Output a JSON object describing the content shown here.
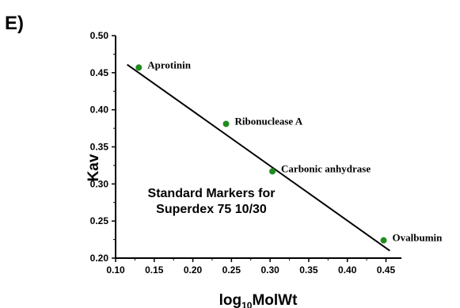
{
  "panel_label": "E)",
  "chart_data": {
    "type": "scatter",
    "xlabel_main": "log",
    "xlabel_sub": "10",
    "xlabel_tail": "MolWt",
    "ylabel": "Kav",
    "xlim": [
      0.1,
      0.47
    ],
    "ylim": [
      0.2,
      0.5
    ],
    "x_ticks": [
      "0.10",
      "0.15",
      "0.20",
      "0.25",
      "0.30",
      "0.35",
      "0.40",
      "0.45"
    ],
    "y_ticks": [
      "0.20",
      "0.25",
      "0.30",
      "0.35",
      "0.40",
      "0.45",
      "0.50"
    ],
    "points": [
      {
        "label": "Aprotinin",
        "x": 0.13,
        "y": 0.457
      },
      {
        "label": "Ribonuclease A",
        "x": 0.243,
        "y": 0.381
      },
      {
        "label": "Carbonic anhydrase",
        "x": 0.303,
        "y": 0.317
      },
      {
        "label": "Ovalbumin",
        "x": 0.447,
        "y": 0.224
      }
    ],
    "fit_line": {
      "x0": 0.115,
      "y0": 0.461,
      "x1": 0.455,
      "y1": 0.21
    },
    "annotation": [
      "Standard Markers for",
      "Superdex 75 10/30"
    ],
    "point_color": "#1e8c1e",
    "grid": false
  }
}
